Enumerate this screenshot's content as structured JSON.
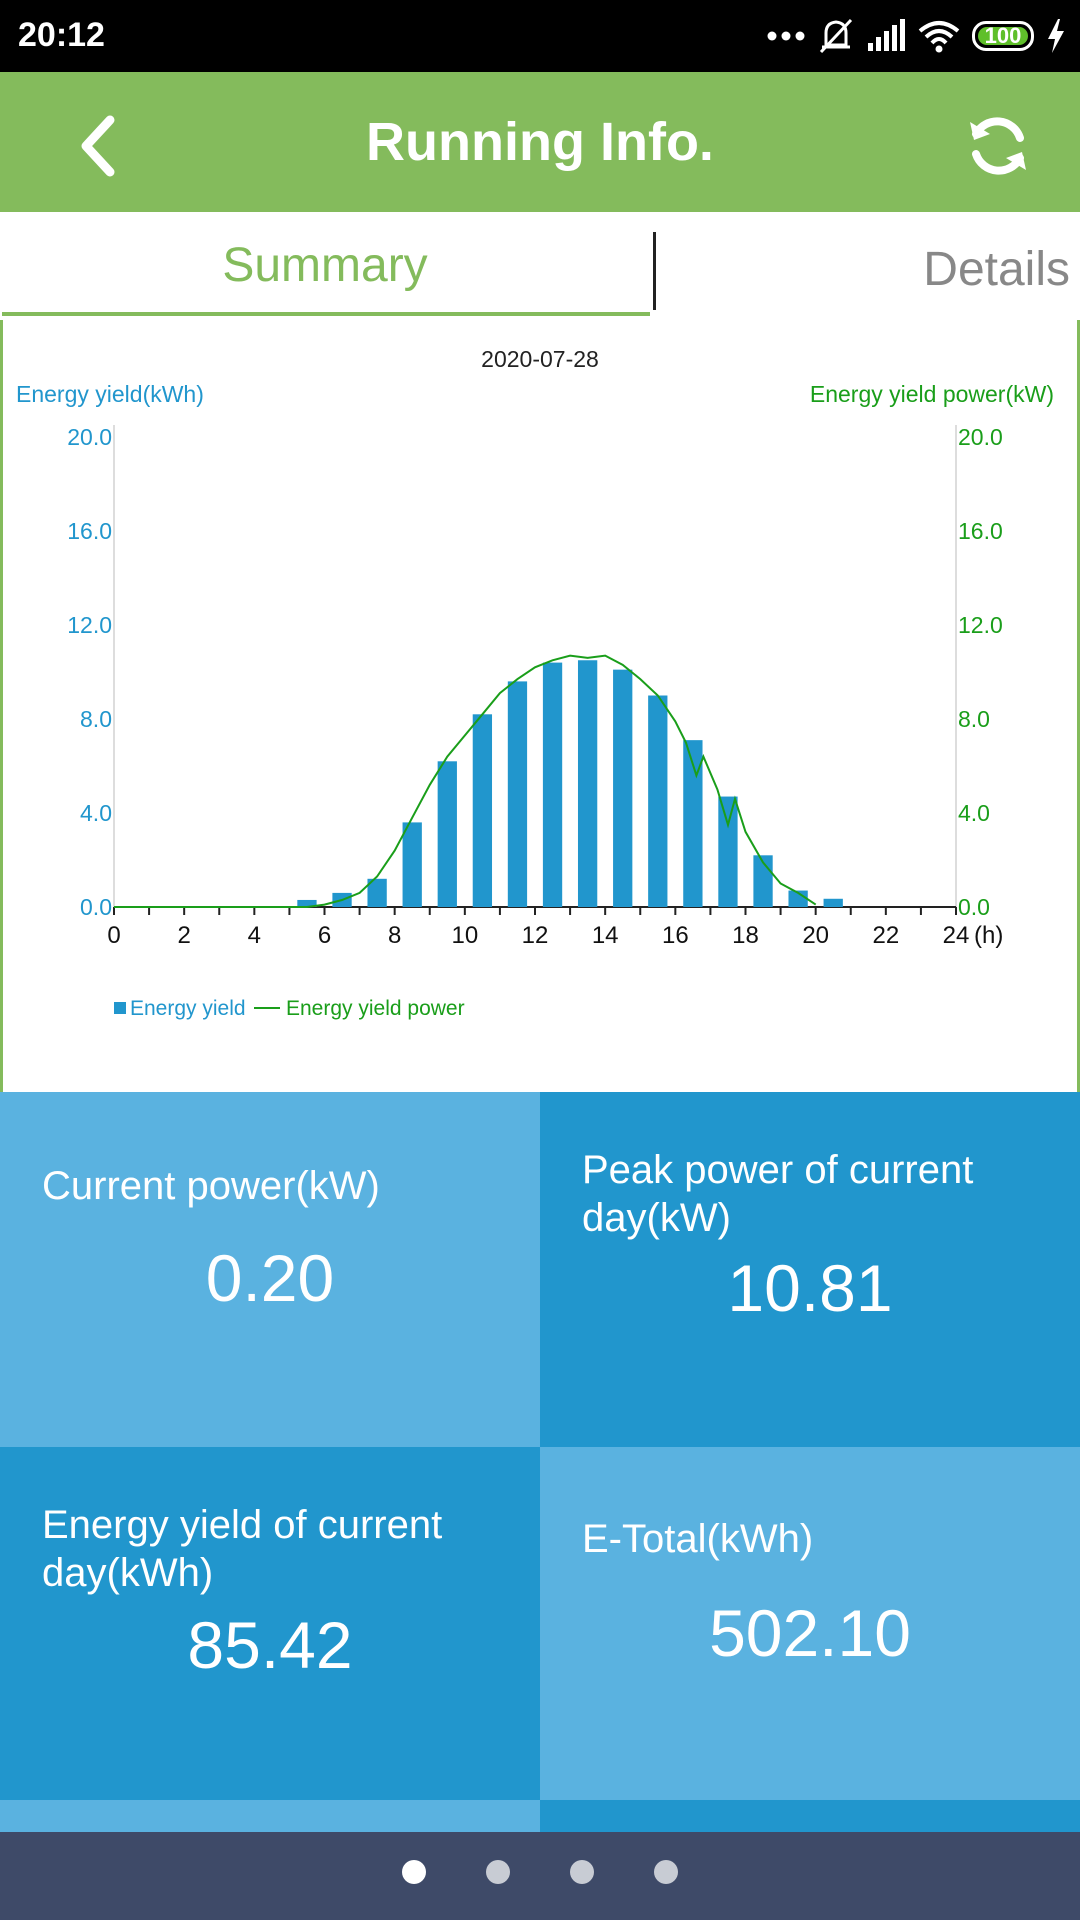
{
  "status_bar": {
    "time": "20:12",
    "battery": "100",
    "icons": [
      "more-dots-icon",
      "mute-icon",
      "signal-icon",
      "wifi-icon",
      "battery-icon",
      "charging-icon"
    ]
  },
  "app_bar": {
    "title": "Running Info.",
    "back_icon": "chevron-left-icon",
    "refresh_icon": "refresh-icon",
    "color": "#84bb5c"
  },
  "tabs": [
    {
      "label": "Summary",
      "active": true
    },
    {
      "label": "Details",
      "active": false
    }
  ],
  "chart_data": {
    "type": "bar",
    "title": "2020-07-28",
    "ylabel_left": "Energy yield(kWh)",
    "ylabel_right": "Energy yield power(kW)",
    "x_unit": "(h)",
    "xlim": [
      0,
      24
    ],
    "ylim": [
      0,
      20
    ],
    "x_ticks": [
      "0",
      "2",
      "4",
      "6",
      "8",
      "10",
      "12",
      "14",
      "16",
      "18",
      "20",
      "22",
      "24"
    ],
    "y_ticks_left": [
      "0.0",
      "4.0",
      "8.0",
      "12.0",
      "16.0",
      "20.0"
    ],
    "y_ticks_right": [
      "0.0",
      "4.0",
      "8.0",
      "12.0",
      "16.0",
      "20.0"
    ],
    "legend": [
      {
        "name": "Energy yield",
        "color": "#2196cd"
      },
      {
        "name": "Energy yield power",
        "color": "#1a9e1a"
      }
    ],
    "series": [
      {
        "name": "Energy yield",
        "kind": "bar",
        "x": [
          5.5,
          6.5,
          7.5,
          8.5,
          9.5,
          10.5,
          11.5,
          12.5,
          13.5,
          14.5,
          15.5,
          16.5,
          17.5,
          18.5,
          19.5,
          20.5
        ],
        "values": [
          0.3,
          0.6,
          1.2,
          3.6,
          6.2,
          8.2,
          9.6,
          10.4,
          10.5,
          10.1,
          9.0,
          7.1,
          4.7,
          2.2,
          0.7,
          0.35
        ]
      },
      {
        "name": "Energy yield power",
        "kind": "line",
        "x": [
          0,
          5.5,
          6,
          6.5,
          7,
          7.5,
          8,
          8.5,
          9,
          9.5,
          10,
          10.5,
          11,
          11.5,
          12,
          12.5,
          13,
          13.5,
          14,
          14.5,
          15,
          15.5,
          16,
          16.3,
          16.6,
          16.8,
          17.2,
          17.5,
          17.7,
          18,
          18.5,
          19,
          19.5,
          20
        ],
        "values": [
          0,
          0,
          0.1,
          0.3,
          0.6,
          1.3,
          2.4,
          3.8,
          5.2,
          6.4,
          7.3,
          8.2,
          9.1,
          9.7,
          10.2,
          10.5,
          10.7,
          10.6,
          10.7,
          10.3,
          9.7,
          9.0,
          7.9,
          7.0,
          5.6,
          6.4,
          5.0,
          3.5,
          4.6,
          3.2,
          1.9,
          1.0,
          0.6,
          0.1
        ]
      }
    ],
    "grid": false,
    "legend_position": "bottom-left"
  },
  "metrics": [
    {
      "label": "Current power(kW)",
      "value": "0.20"
    },
    {
      "label": "Peak power of current day(kW)",
      "value": "10.81"
    },
    {
      "label": "Energy yield of current day(kWh)",
      "value": "85.42"
    },
    {
      "label": "E-Total(kWh)",
      "value": "502.10"
    }
  ],
  "pager": {
    "count": 4,
    "active": 0
  }
}
